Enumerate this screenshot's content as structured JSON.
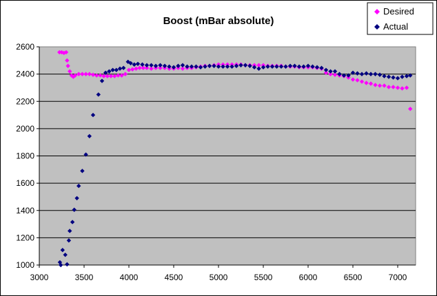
{
  "chart_data": {
    "type": "scatter",
    "title": "Boost (mBar absolute)",
    "xlabel": "",
    "ylabel": "",
    "xlim": [
      3000,
      7200
    ],
    "ylim": [
      1000,
      2600
    ],
    "x_ticks": [
      3000,
      3500,
      4000,
      4500,
      5000,
      5500,
      6000,
      6500,
      7000
    ],
    "y_ticks": [
      1000,
      1200,
      1400,
      1600,
      1800,
      2000,
      2200,
      2400,
      2600
    ],
    "grid": "horizontal",
    "legend_position": "top-right",
    "series": [
      {
        "name": "Desired",
        "color": "#ff00ff",
        "marker": "diamond",
        "points": [
          [
            3225,
            2560
          ],
          [
            3250,
            2560
          ],
          [
            3275,
            2555
          ],
          [
            3300,
            2560
          ],
          [
            3310,
            2500
          ],
          [
            3320,
            2460
          ],
          [
            3340,
            2420
          ],
          [
            3360,
            2390
          ],
          [
            3380,
            2380
          ],
          [
            3400,
            2390
          ],
          [
            3440,
            2400
          ],
          [
            3480,
            2400
          ],
          [
            3520,
            2400
          ],
          [
            3560,
            2400
          ],
          [
            3600,
            2395
          ],
          [
            3640,
            2390
          ],
          [
            3680,
            2390
          ],
          [
            3720,
            2385
          ],
          [
            3760,
            2385
          ],
          [
            3800,
            2385
          ],
          [
            3840,
            2385
          ],
          [
            3880,
            2390
          ],
          [
            3920,
            2390
          ],
          [
            3960,
            2400
          ],
          [
            4000,
            2430
          ],
          [
            4040,
            2435
          ],
          [
            4080,
            2440
          ],
          [
            4120,
            2445
          ],
          [
            4160,
            2445
          ],
          [
            4200,
            2445
          ],
          [
            4250,
            2440
          ],
          [
            4300,
            2445
          ],
          [
            4350,
            2445
          ],
          [
            4400,
            2445
          ],
          [
            4450,
            2440
          ],
          [
            4500,
            2440
          ],
          [
            4550,
            2445
          ],
          [
            4600,
            2440
          ],
          [
            4650,
            2445
          ],
          [
            4700,
            2445
          ],
          [
            4750,
            2450
          ],
          [
            4800,
            2455
          ],
          [
            4850,
            2460
          ],
          [
            4900,
            2460
          ],
          [
            4950,
            2465
          ],
          [
            5000,
            2470
          ],
          [
            5050,
            2470
          ],
          [
            5100,
            2470
          ],
          [
            5150,
            2470
          ],
          [
            5200,
            2470
          ],
          [
            5250,
            2470
          ],
          [
            5300,
            2465
          ],
          [
            5350,
            2465
          ],
          [
            5400,
            2465
          ],
          [
            5450,
            2465
          ],
          [
            5500,
            2465
          ],
          [
            5550,
            2460
          ],
          [
            5600,
            2460
          ],
          [
            5650,
            2460
          ],
          [
            5700,
            2460
          ],
          [
            5750,
            2455
          ],
          [
            5800,
            2455
          ],
          [
            5850,
            2455
          ],
          [
            5900,
            2450
          ],
          [
            5950,
            2450
          ],
          [
            6000,
            2450
          ],
          [
            6050,
            2450
          ],
          [
            6100,
            2445
          ],
          [
            6150,
            2440
          ],
          [
            6200,
            2410
          ],
          [
            6250,
            2400
          ],
          [
            6300,
            2395
          ],
          [
            6350,
            2390
          ],
          [
            6400,
            2385
          ],
          [
            6450,
            2375
          ],
          [
            6500,
            2360
          ],
          [
            6550,
            2355
          ],
          [
            6600,
            2345
          ],
          [
            6650,
            2335
          ],
          [
            6700,
            2330
          ],
          [
            6750,
            2320
          ],
          [
            6800,
            2315
          ],
          [
            6850,
            2315
          ],
          [
            6900,
            2305
          ],
          [
            6950,
            2305
          ],
          [
            7000,
            2300
          ],
          [
            7050,
            2295
          ],
          [
            7100,
            2300
          ],
          [
            7140,
            2145
          ]
        ]
      },
      {
        "name": "Actual",
        "color": "#000080",
        "marker": "diamond",
        "points": [
          [
            3230,
            1020
          ],
          [
            3240,
            1000
          ],
          [
            3260,
            1110
          ],
          [
            3290,
            1075
          ],
          [
            3310,
            1005
          ],
          [
            3330,
            1180
          ],
          [
            3340,
            1250
          ],
          [
            3370,
            1315
          ],
          [
            3390,
            1405
          ],
          [
            3420,
            1490
          ],
          [
            3440,
            1580
          ],
          [
            3480,
            1690
          ],
          [
            3520,
            1810
          ],
          [
            3560,
            1945
          ],
          [
            3600,
            2100
          ],
          [
            3660,
            2250
          ],
          [
            3700,
            2350
          ],
          [
            3740,
            2410
          ],
          [
            3780,
            2420
          ],
          [
            3820,
            2430
          ],
          [
            3860,
            2430
          ],
          [
            3900,
            2440
          ],
          [
            3940,
            2445
          ],
          [
            3990,
            2490
          ],
          [
            4020,
            2480
          ],
          [
            4060,
            2470
          ],
          [
            4100,
            2475
          ],
          [
            4150,
            2470
          ],
          [
            4200,
            2465
          ],
          [
            4250,
            2465
          ],
          [
            4300,
            2460
          ],
          [
            4350,
            2465
          ],
          [
            4400,
            2460
          ],
          [
            4450,
            2455
          ],
          [
            4500,
            2450
          ],
          [
            4550,
            2460
          ],
          [
            4600,
            2465
          ],
          [
            4650,
            2455
          ],
          [
            4700,
            2455
          ],
          [
            4750,
            2455
          ],
          [
            4800,
            2450
          ],
          [
            4850,
            2455
          ],
          [
            4900,
            2460
          ],
          [
            4950,
            2460
          ],
          [
            5000,
            2455
          ],
          [
            5050,
            2455
          ],
          [
            5100,
            2455
          ],
          [
            5150,
            2455
          ],
          [
            5200,
            2460
          ],
          [
            5250,
            2465
          ],
          [
            5300,
            2465
          ],
          [
            5350,
            2460
          ],
          [
            5400,
            2450
          ],
          [
            5450,
            2440
          ],
          [
            5500,
            2450
          ],
          [
            5550,
            2455
          ],
          [
            5600,
            2455
          ],
          [
            5650,
            2455
          ],
          [
            5700,
            2455
          ],
          [
            5750,
            2455
          ],
          [
            5800,
            2460
          ],
          [
            5850,
            2460
          ],
          [
            5900,
            2455
          ],
          [
            5950,
            2455
          ],
          [
            6000,
            2460
          ],
          [
            6050,
            2455
          ],
          [
            6100,
            2450
          ],
          [
            6150,
            2445
          ],
          [
            6200,
            2430
          ],
          [
            6250,
            2420
          ],
          [
            6300,
            2420
          ],
          [
            6350,
            2400
          ],
          [
            6400,
            2390
          ],
          [
            6450,
            2390
          ],
          [
            6500,
            2410
          ],
          [
            6550,
            2405
          ],
          [
            6600,
            2400
          ],
          [
            6650,
            2405
          ],
          [
            6700,
            2400
          ],
          [
            6750,
            2400
          ],
          [
            6800,
            2395
          ],
          [
            6850,
            2385
          ],
          [
            6900,
            2380
          ],
          [
            6950,
            2375
          ],
          [
            7000,
            2370
          ],
          [
            7050,
            2380
          ],
          [
            7100,
            2385
          ],
          [
            7140,
            2390
          ]
        ]
      }
    ]
  }
}
